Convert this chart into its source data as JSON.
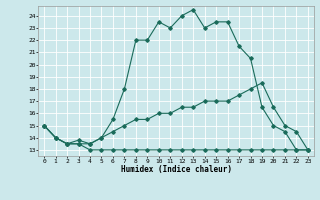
{
  "xlabel": "Humidex (Indice chaleur)",
  "xlim": [
    -0.5,
    23.5
  ],
  "ylim": [
    12.5,
    24.8
  ],
  "yticks": [
    13,
    14,
    15,
    16,
    17,
    18,
    19,
    20,
    21,
    22,
    23,
    24
  ],
  "xticks": [
    0,
    1,
    2,
    3,
    4,
    5,
    6,
    7,
    8,
    9,
    10,
    11,
    12,
    13,
    14,
    15,
    16,
    17,
    18,
    19,
    20,
    21,
    22,
    23
  ],
  "xtick_labels": [
    "0",
    "1",
    "2",
    "3",
    "4",
    "5",
    "6",
    "7",
    "8",
    "9",
    "10",
    "11",
    "12",
    "13",
    "14",
    "15",
    "16",
    "17",
    "18",
    "19",
    "20",
    "21",
    "22",
    "23"
  ],
  "line_color": "#1a6b5a",
  "background_color": "#cce8eb",
  "grid_color": "#ffffff",
  "lines": [
    {
      "x": [
        0,
        1,
        2,
        3,
        4,
        5,
        6,
        7,
        8,
        9,
        10,
        11,
        12,
        13,
        14,
        15,
        16,
        17,
        18,
        19,
        20,
        21,
        22,
        23
      ],
      "y": [
        15,
        14,
        13.5,
        13.5,
        13,
        13,
        13,
        13,
        13,
        13,
        13,
        13,
        13,
        13,
        13,
        13,
        13,
        13,
        13,
        13,
        13,
        13,
        13,
        13
      ]
    },
    {
      "x": [
        0,
        1,
        2,
        3,
        4,
        5,
        6,
        7,
        8,
        9,
        10,
        11,
        12,
        13,
        14,
        15,
        16,
        17,
        18,
        19,
        20,
        21,
        22,
        23
      ],
      "y": [
        15,
        14,
        13.5,
        13.5,
        13.5,
        14,
        14.5,
        15,
        15.5,
        15.5,
        16,
        16,
        16.5,
        16.5,
        17,
        17,
        17,
        17.5,
        18,
        18.5,
        16.5,
        15,
        14.5,
        13
      ]
    },
    {
      "x": [
        0,
        1,
        2,
        3,
        4,
        5,
        6,
        7,
        8,
        9,
        10,
        11,
        12,
        13,
        14,
        15,
        16,
        17,
        18,
        19,
        20,
        21,
        22,
        23
      ],
      "y": [
        15,
        14,
        13.5,
        13.8,
        13.5,
        14,
        15.5,
        18,
        22,
        22,
        23.5,
        23,
        24,
        24.5,
        23,
        23.5,
        23.5,
        21.5,
        20.5,
        16.5,
        15,
        14.5,
        13,
        13
      ]
    }
  ]
}
